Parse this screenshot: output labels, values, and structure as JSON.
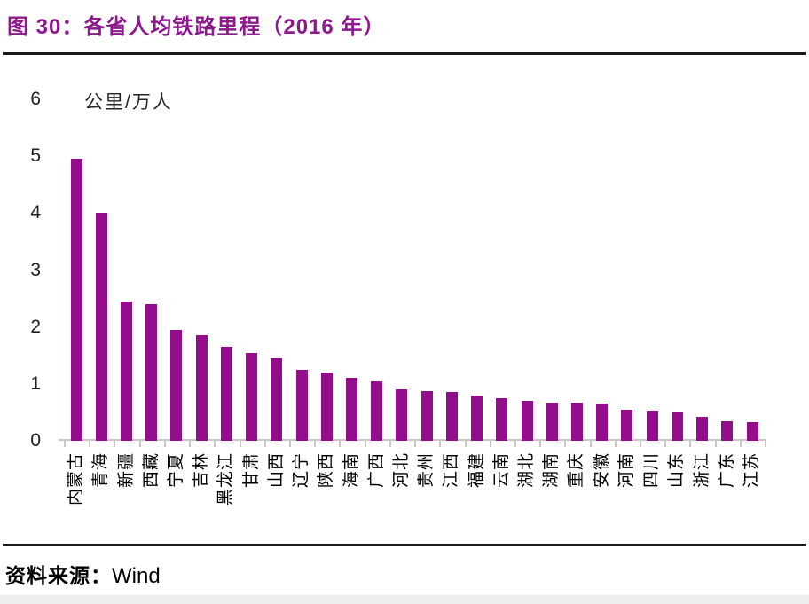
{
  "header": {
    "title": "图 30：各省人均铁路里程（2016 年）"
  },
  "chart_data": {
    "type": "bar",
    "title": "各省人均铁路里程（2016 年）",
    "unit_label": "公里/万人",
    "ylabel": "公里/万人",
    "xlabel": "",
    "ylim": [
      0,
      6
    ],
    "yticks": [
      0,
      1,
      2,
      3,
      4,
      5,
      6
    ],
    "grid": false,
    "legend": "none",
    "bar_color": "#940D8D",
    "categories": [
      "内蒙古",
      "青海",
      "新疆",
      "西藏",
      "宁夏",
      "吉林",
      "黑龙江",
      "甘肃",
      "山西",
      "辽宁",
      "陕西",
      "海南",
      "广西",
      "河北",
      "贵州",
      "江西",
      "福建",
      "云南",
      "湖北",
      "湖南",
      "重庆",
      "安徽",
      "河南",
      "四川",
      "山东",
      "浙江",
      "广东",
      "江苏"
    ],
    "values": [
      4.95,
      4.0,
      2.45,
      2.4,
      1.95,
      1.85,
      1.65,
      1.55,
      1.45,
      1.25,
      1.2,
      1.1,
      1.05,
      0.9,
      0.88,
      0.85,
      0.8,
      0.75,
      0.7,
      0.67,
      0.67,
      0.65,
      0.55,
      0.53,
      0.51,
      0.42,
      0.35,
      0.32
    ]
  },
  "footer": {
    "source_label": "资料来源：",
    "source_value": "Wind"
  },
  "colors": {
    "accent": "#940D8D",
    "title": "#8E188E",
    "axis": "#C8C8C8",
    "rule": "#1A1A1A"
  }
}
